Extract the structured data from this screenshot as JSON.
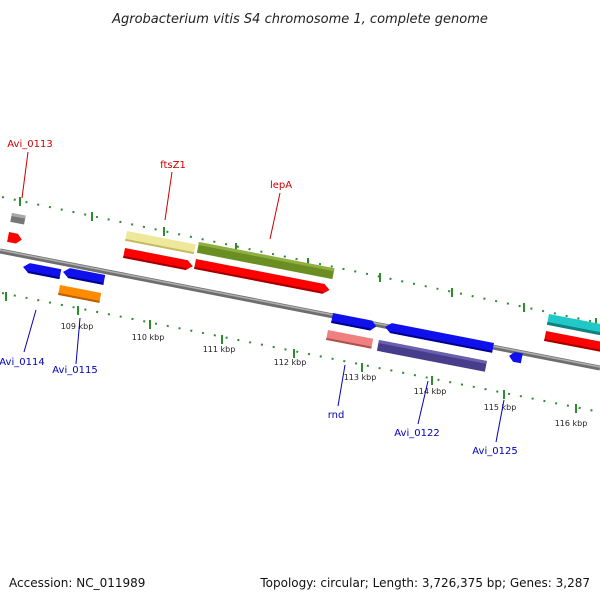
{
  "title": "Agrobacterium vitis S4 chromosome 1, complete genome",
  "footer": {
    "accession": "Accession: NC_011989",
    "summary": "Topology: circular; Length: 3,726,375 bp; Genes: 3,287"
  },
  "kbp_labels": [
    "109 kbp",
    "110 kbp",
    "111 kbp",
    "112 kbp",
    "113 kbp",
    "114 kbp",
    "115 kbp",
    "116 kbp"
  ],
  "gene_labels": {
    "avi_0113": "Avi_0113",
    "ftsz1": "ftsZ1",
    "lepa": "lepA",
    "avi_0114": "Avi_0114",
    "avi_0115": "Avi_0115",
    "rnd": "rnd",
    "avi_0122": "Avi_0122",
    "avi_0125": "Avi_0125"
  },
  "colors": {
    "backbone": "#8a8a8a",
    "tick": "#2e8b2e",
    "cds_red": "#ff0000",
    "cds_blue": "#1010ee",
    "gray": "#777777",
    "khaki": "#eee89a",
    "olive": "#6b8e23",
    "orange": "#ff8c00",
    "salmon": "#f08080",
    "slate": "#483d8b",
    "cyan": "#20c8c8",
    "label_red": "#cc0000",
    "label_blue": "#0000bb"
  }
}
